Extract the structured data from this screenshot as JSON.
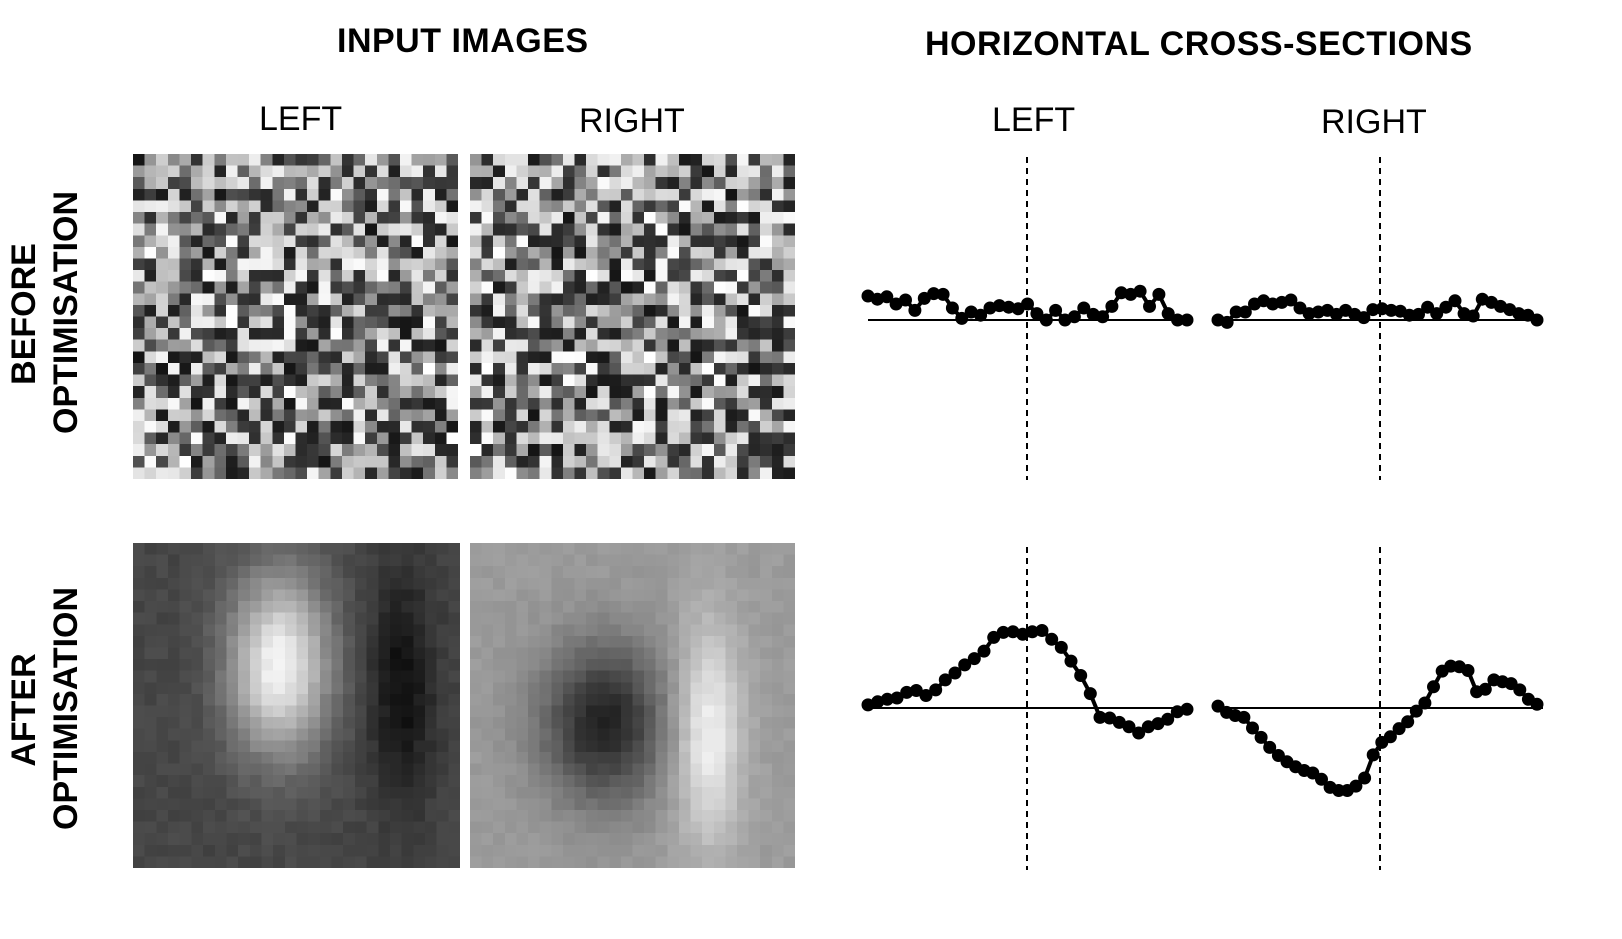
{
  "titles": {
    "input_images": "INPUT IMAGES",
    "cross_sections": "HORIZONTAL CROSS-SECTIONS"
  },
  "column_labels": {
    "left": "LEFT",
    "right": "RIGHT"
  },
  "row_labels": {
    "before": [
      "BEFORE",
      "OPTIMISATION"
    ],
    "after": [
      "AFTER",
      "OPTIMISATION"
    ]
  },
  "colors": {
    "line": "#000000",
    "background": "#ffffff"
  },
  "chart_data": [
    {
      "type": "line",
      "panel": "before-left",
      "values": [
        0.3,
        0.26,
        0.29,
        0.2,
        0.25,
        0.12,
        0.27,
        0.33,
        0.32,
        0.15,
        0.02,
        0.1,
        0.06,
        0.15,
        0.18,
        0.16,
        0.14,
        0.2,
        0.08,
        0.0,
        0.12,
        0.0,
        0.04,
        0.15,
        0.07,
        0.04,
        0.17,
        0.34,
        0.32,
        0.36,
        0.17,
        0.32,
        0.08,
        0.0,
        0.0
      ],
      "ylim": [
        -1,
        1
      ]
    },
    {
      "type": "line",
      "panel": "before-right",
      "values": [
        0.0,
        -0.03,
        0.1,
        0.1,
        0.2,
        0.24,
        0.2,
        0.22,
        0.25,
        0.15,
        0.08,
        0.1,
        0.12,
        0.07,
        0.12,
        0.07,
        0.03,
        0.13,
        0.14,
        0.12,
        0.11,
        0.06,
        0.07,
        0.16,
        0.08,
        0.16,
        0.24,
        0.08,
        0.05,
        0.26,
        0.22,
        0.17,
        0.13,
        0.08,
        0.06,
        0.0
      ],
      "ylim": [
        -1,
        1
      ]
    },
    {
      "type": "line",
      "panel": "after-left",
      "values": [
        0.05,
        0.1,
        0.14,
        0.16,
        0.25,
        0.28,
        0.2,
        0.29,
        0.45,
        0.56,
        0.69,
        0.79,
        0.91,
        1.13,
        1.21,
        1.22,
        1.18,
        1.22,
        1.24,
        1.1,
        0.97,
        0.75,
        0.52,
        0.23,
        -0.15,
        -0.16,
        -0.23,
        -0.3,
        -0.4,
        -0.3,
        -0.25,
        -0.18,
        -0.06,
        -0.02
      ],
      "ylim": [
        -1.6,
        1.6
      ]
    },
    {
      "type": "line",
      "panel": "after-right",
      "values": [
        0.03,
        -0.07,
        -0.12,
        -0.15,
        -0.32,
        -0.47,
        -0.63,
        -0.76,
        -0.86,
        -0.94,
        -1.0,
        -1.04,
        -1.14,
        -1.27,
        -1.32,
        -1.32,
        -1.25,
        -1.12,
        -0.75,
        -0.55,
        -0.46,
        -0.33,
        -0.22,
        -0.05,
        0.08,
        0.34,
        0.59,
        0.67,
        0.66,
        0.6,
        0.26,
        0.3,
        0.45,
        0.42,
        0.39,
        0.29,
        0.14,
        0.06
      ],
      "ylim": [
        -1.6,
        1.6
      ]
    }
  ]
}
